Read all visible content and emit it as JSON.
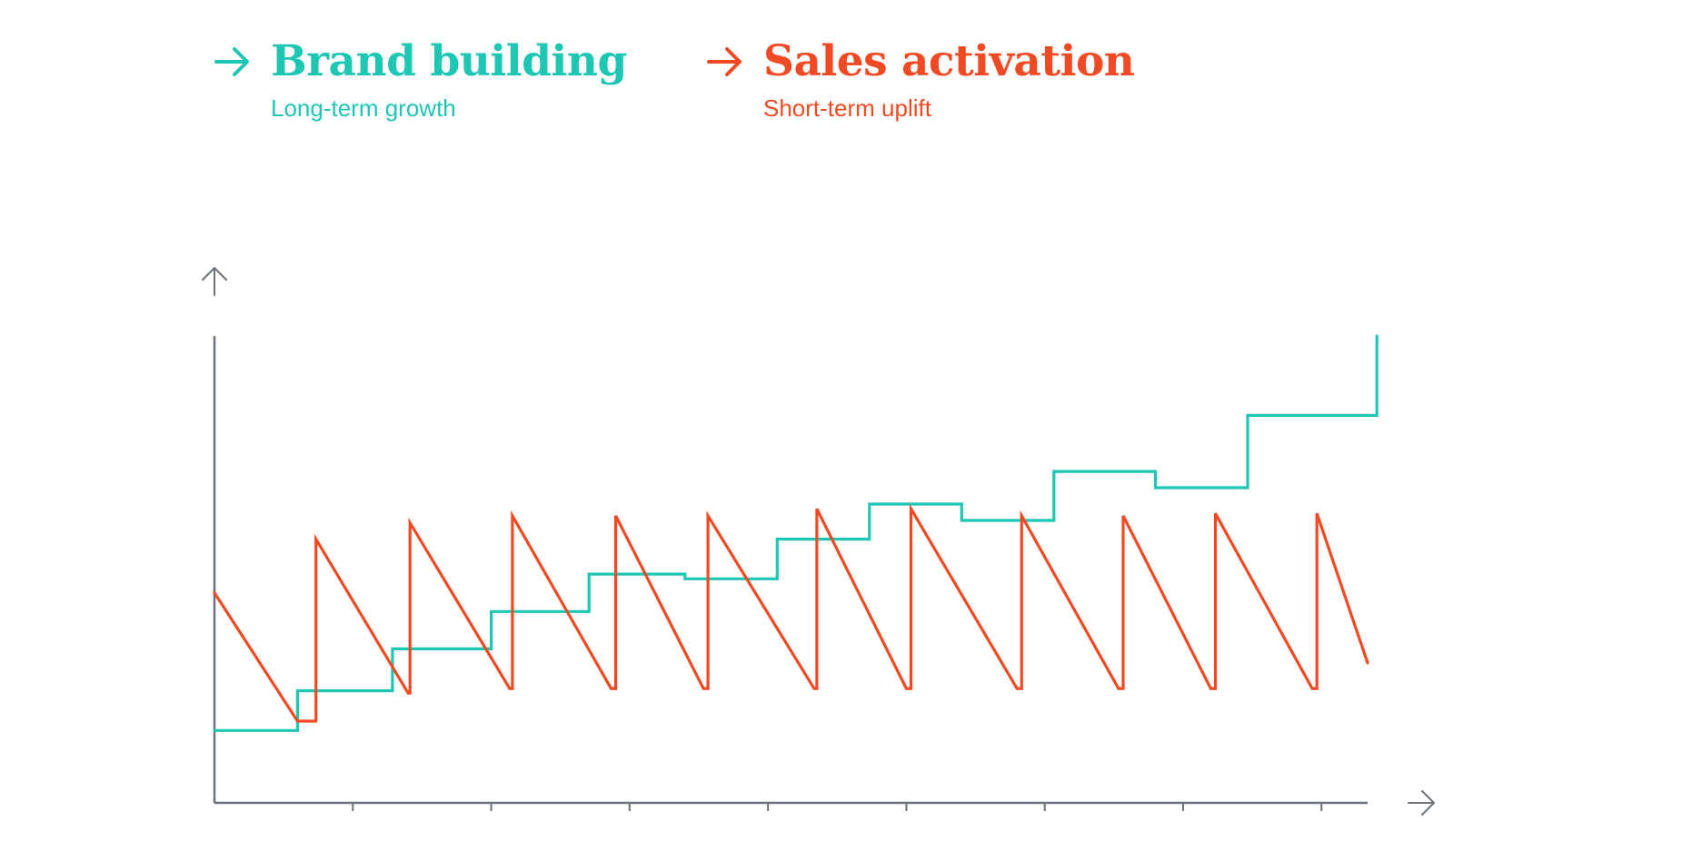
{
  "colors": {
    "brand": "#1dc7b3",
    "sales": "#f04a24",
    "axis": "#6b727a"
  },
  "legend": [
    {
      "title": "Brand building",
      "subtitle": "Long-term growth",
      "icon": "arrow-right-icon",
      "color": "#1dc7b3"
    },
    {
      "title": "Sales activation",
      "subtitle": "Short-term uplift",
      "icon": "arrow-right-icon",
      "color": "#f04a24"
    }
  ],
  "chart_data": {
    "type": "line",
    "xlim": [
      0,
      12.5
    ],
    "ylim": [
      0,
      100
    ],
    "x_ticks": [
      1.5,
      3,
      4.5,
      6,
      7.5,
      9,
      10.5,
      12
    ],
    "grid": false,
    "axis_arrows": true,
    "series": [
      {
        "name": "Brand building",
        "color": "#1dc7b3",
        "shape": "step",
        "points": [
          [
            0,
            15.5
          ],
          [
            0.9,
            15.5
          ],
          [
            0.9,
            24
          ],
          [
            1.93,
            24
          ],
          [
            1.93,
            33
          ],
          [
            3,
            33
          ],
          [
            3,
            41
          ],
          [
            4.06,
            41
          ],
          [
            4.06,
            49
          ],
          [
            5.1,
            49
          ],
          [
            5.1,
            48
          ],
          [
            6.1,
            48
          ],
          [
            6.1,
            56.5
          ],
          [
            7.1,
            56.5
          ],
          [
            7.1,
            64
          ],
          [
            8.1,
            64
          ],
          [
            8.1,
            60.5
          ],
          [
            9.1,
            60.5
          ],
          [
            9.1,
            71
          ],
          [
            10.2,
            71
          ],
          [
            10.2,
            67.5
          ],
          [
            11.2,
            67.5
          ],
          [
            11.2,
            83
          ],
          [
            12.6,
            83
          ],
          [
            12.6,
            100
          ]
        ]
      },
      {
        "name": "Sales activation",
        "color": "#f04a24",
        "shape": "sawtooth",
        "points": [
          [
            0,
            45
          ],
          [
            0.9,
            17.5
          ],
          [
            1.1,
            17.5
          ],
          [
            1.1,
            56.5
          ],
          [
            2.1,
            23.5
          ],
          [
            2.12,
            23.5
          ],
          [
            2.12,
            60
          ],
          [
            3.2,
            24.5
          ],
          [
            3.23,
            24.5
          ],
          [
            3.23,
            61.5
          ],
          [
            4.3,
            24.5
          ],
          [
            4.35,
            24.5
          ],
          [
            4.35,
            61.5
          ],
          [
            5.3,
            24.5
          ],
          [
            5.35,
            24.5
          ],
          [
            5.35,
            61.5
          ],
          [
            6.5,
            24.5
          ],
          [
            6.53,
            24.5
          ],
          [
            6.53,
            63
          ],
          [
            7.5,
            24.5
          ],
          [
            7.55,
            24.5
          ],
          [
            7.55,
            63
          ],
          [
            8.7,
            24.5
          ],
          [
            8.75,
            24.5
          ],
          [
            8.75,
            61.5
          ],
          [
            9.8,
            24.5
          ],
          [
            9.85,
            24.5
          ],
          [
            9.85,
            61.5
          ],
          [
            10.8,
            24.5
          ],
          [
            10.85,
            24.5
          ],
          [
            10.85,
            62
          ],
          [
            11.9,
            24.5
          ],
          [
            11.95,
            24.5
          ],
          [
            11.95,
            62
          ],
          [
            12.5,
            30
          ]
        ]
      }
    ]
  }
}
